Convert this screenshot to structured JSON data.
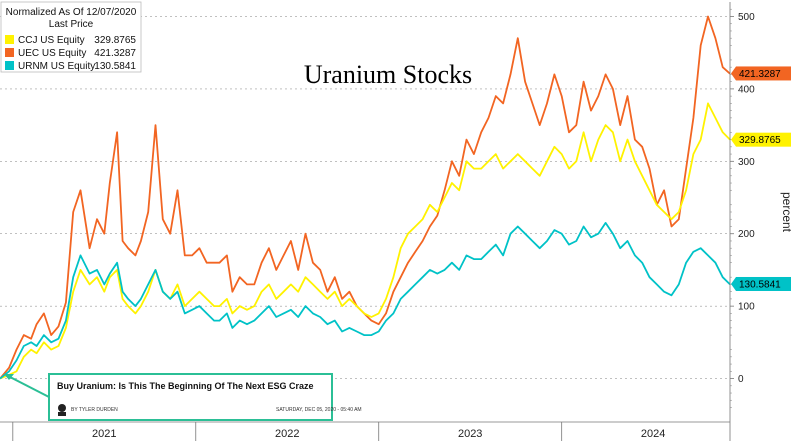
{
  "chart_data": {
    "type": "line",
    "title": "Uranium Stocks",
    "ylabel": "percent",
    "legend_header": [
      "Normalized As Of 12/07/2020",
      "Last Price"
    ],
    "legend_position": "top-left",
    "ylim": [
      -60,
      520
    ],
    "yticks": [
      0,
      100,
      200,
      300,
      400,
      500
    ],
    "xlim": [
      2020.93,
      2024.92
    ],
    "x_labels": [
      {
        "label": "2021",
        "x": 2021.5
      },
      {
        "label": "2022",
        "x": 2022.5
      },
      {
        "label": "2023",
        "x": 2023.5
      },
      {
        "label": "2024",
        "x": 2024.5
      }
    ],
    "x_dividers": [
      2021.0,
      2022.0,
      2023.0,
      2024.0,
      2024.92
    ],
    "grid": true,
    "series": [
      {
        "name": "UEC US Equity",
        "last_price": "421.3287",
        "color": "#f26522",
        "x": [
          2020.93,
          2020.98,
          2021.02,
          2021.06,
          2021.1,
          2021.13,
          2021.17,
          2021.21,
          2021.25,
          2021.29,
          2021.33,
          2021.37,
          2021.42,
          2021.46,
          2021.5,
          2021.53,
          2021.57,
          2021.6,
          2021.63,
          2021.67,
          2021.7,
          2021.74,
          2021.78,
          2021.82,
          2021.86,
          2021.9,
          2021.94,
          2021.98,
          2022.02,
          2022.06,
          2022.1,
          2022.13,
          2022.17,
          2022.2,
          2022.24,
          2022.28,
          2022.32,
          2022.36,
          2022.4,
          2022.44,
          2022.48,
          2022.52,
          2022.56,
          2022.6,
          2022.64,
          2022.68,
          2022.72,
          2022.76,
          2022.8,
          2022.84,
          2022.88,
          2022.92,
          2022.96,
          2023.0,
          2023.04,
          2023.08,
          2023.12,
          2023.16,
          2023.2,
          2023.24,
          2023.28,
          2023.32,
          2023.36,
          2023.4,
          2023.44,
          2023.48,
          2023.52,
          2023.56,
          2023.6,
          2023.64,
          2023.68,
          2023.72,
          2023.76,
          2023.8,
          2023.84,
          2023.88,
          2023.92,
          2023.96,
          2024.0,
          2024.04,
          2024.08,
          2024.12,
          2024.16,
          2024.2,
          2024.24,
          2024.28,
          2024.32,
          2024.36,
          2024.4,
          2024.44,
          2024.48,
          2024.52,
          2024.56,
          2024.6,
          2024.64,
          2024.68,
          2024.72,
          2024.76,
          2024.8,
          2024.84,
          2024.88,
          2024.92
        ],
        "values": [
          0,
          15,
          40,
          60,
          55,
          75,
          90,
          60,
          72,
          105,
          230,
          260,
          180,
          220,
          200,
          270,
          340,
          190,
          180,
          170,
          190,
          230,
          350,
          220,
          200,
          260,
          170,
          170,
          180,
          160,
          160,
          160,
          170,
          120,
          140,
          130,
          130,
          160,
          180,
          150,
          170,
          190,
          150,
          200,
          160,
          150,
          120,
          140,
          110,
          120,
          100,
          90,
          80,
          75,
          90,
          120,
          140,
          160,
          175,
          190,
          210,
          225,
          260,
          300,
          280,
          330,
          310,
          340,
          360,
          390,
          380,
          420,
          470,
          410,
          380,
          350,
          380,
          420,
          390,
          340,
          350,
          410,
          370,
          390,
          420,
          400,
          350,
          390,
          330,
          320,
          290,
          240,
          260,
          210,
          220,
          290,
          360,
          460,
          500,
          470,
          430,
          421
        ]
      },
      {
        "name": "CCJ US Equity",
        "last_price": "329.8765",
        "color": "#fff200",
        "x": [
          2020.93,
          2020.98,
          2021.02,
          2021.06,
          2021.1,
          2021.13,
          2021.17,
          2021.21,
          2021.25,
          2021.29,
          2021.33,
          2021.37,
          2021.42,
          2021.46,
          2021.5,
          2021.53,
          2021.57,
          2021.6,
          2021.63,
          2021.67,
          2021.7,
          2021.74,
          2021.78,
          2021.82,
          2021.86,
          2021.9,
          2021.94,
          2021.98,
          2022.02,
          2022.06,
          2022.1,
          2022.13,
          2022.17,
          2022.2,
          2022.24,
          2022.28,
          2022.32,
          2022.36,
          2022.4,
          2022.44,
          2022.48,
          2022.52,
          2022.56,
          2022.6,
          2022.64,
          2022.68,
          2022.72,
          2022.76,
          2022.8,
          2022.84,
          2022.88,
          2022.92,
          2022.96,
          2023.0,
          2023.04,
          2023.08,
          2023.12,
          2023.16,
          2023.2,
          2023.24,
          2023.28,
          2023.32,
          2023.36,
          2023.4,
          2023.44,
          2023.48,
          2023.52,
          2023.56,
          2023.6,
          2023.64,
          2023.68,
          2023.72,
          2023.76,
          2023.8,
          2023.84,
          2023.88,
          2023.92,
          2023.96,
          2024.0,
          2024.04,
          2024.08,
          2024.12,
          2024.16,
          2024.2,
          2024.24,
          2024.28,
          2024.32,
          2024.36,
          2024.4,
          2024.44,
          2024.48,
          2024.52,
          2024.56,
          2024.6,
          2024.64,
          2024.68,
          2024.72,
          2024.76,
          2024.8,
          2024.84,
          2024.88,
          2024.92
        ],
        "values": [
          0,
          5,
          10,
          30,
          40,
          35,
          50,
          40,
          45,
          70,
          120,
          150,
          130,
          140,
          120,
          140,
          150,
          110,
          100,
          90,
          100,
          120,
          150,
          120,
          110,
          130,
          100,
          110,
          120,
          110,
          100,
          100,
          110,
          90,
          100,
          95,
          100,
          120,
          130,
          110,
          120,
          130,
          120,
          140,
          130,
          120,
          110,
          120,
          100,
          110,
          100,
          90,
          85,
          90,
          110,
          140,
          180,
          200,
          210,
          220,
          240,
          230,
          250,
          270,
          260,
          300,
          290,
          290,
          300,
          310,
          290,
          300,
          310,
          300,
          290,
          280,
          300,
          320,
          310,
          290,
          300,
          340,
          300,
          330,
          350,
          340,
          300,
          330,
          300,
          280,
          260,
          240,
          230,
          220,
          230,
          260,
          310,
          330,
          380,
          360,
          340,
          330
        ]
      },
      {
        "name": "URNM US Equity",
        "last_price": "130.5841",
        "color": "#00c2c7",
        "x": [
          2020.93,
          2020.98,
          2021.02,
          2021.06,
          2021.1,
          2021.13,
          2021.17,
          2021.21,
          2021.25,
          2021.29,
          2021.33,
          2021.37,
          2021.42,
          2021.46,
          2021.5,
          2021.53,
          2021.57,
          2021.6,
          2021.63,
          2021.67,
          2021.7,
          2021.74,
          2021.78,
          2021.82,
          2021.86,
          2021.9,
          2021.94,
          2021.98,
          2022.02,
          2022.06,
          2022.1,
          2022.13,
          2022.17,
          2022.2,
          2022.24,
          2022.28,
          2022.32,
          2022.36,
          2022.4,
          2022.44,
          2022.48,
          2022.52,
          2022.56,
          2022.6,
          2022.64,
          2022.68,
          2022.72,
          2022.76,
          2022.8,
          2022.84,
          2022.88,
          2022.92,
          2022.96,
          2023.0,
          2023.04,
          2023.08,
          2023.12,
          2023.16,
          2023.2,
          2023.24,
          2023.28,
          2023.32,
          2023.36,
          2023.4,
          2023.44,
          2023.48,
          2023.52,
          2023.56,
          2023.6,
          2023.64,
          2023.68,
          2023.72,
          2023.76,
          2023.8,
          2023.84,
          2023.88,
          2023.92,
          2023.96,
          2024.0,
          2024.04,
          2024.08,
          2024.12,
          2024.16,
          2024.2,
          2024.24,
          2024.28,
          2024.32,
          2024.36,
          2024.4,
          2024.44,
          2024.48,
          2024.52,
          2024.56,
          2024.6,
          2024.64,
          2024.68,
          2024.72,
          2024.76,
          2024.8,
          2024.84,
          2024.88,
          2024.92
        ],
        "values": [
          0,
          10,
          25,
          45,
          50,
          45,
          60,
          50,
          55,
          80,
          140,
          170,
          145,
          150,
          130,
          145,
          160,
          120,
          110,
          100,
          110,
          130,
          150,
          120,
          110,
          120,
          90,
          95,
          100,
          90,
          80,
          80,
          90,
          70,
          80,
          75,
          80,
          90,
          100,
          85,
          90,
          95,
          85,
          100,
          90,
          85,
          75,
          80,
          65,
          70,
          65,
          60,
          60,
          65,
          80,
          90,
          110,
          120,
          130,
          140,
          150,
          145,
          150,
          160,
          150,
          170,
          165,
          165,
          175,
          185,
          170,
          200,
          210,
          200,
          190,
          180,
          190,
          205,
          200,
          185,
          190,
          210,
          195,
          200,
          215,
          200,
          180,
          190,
          170,
          160,
          140,
          130,
          120,
          115,
          130,
          160,
          175,
          180,
          170,
          160,
          140,
          130
        ]
      }
    ]
  },
  "article_tag": {
    "headline": "Buy Uranium: Is This The Beginning Of The Next ESG Craze",
    "byline": "BY TYLER DURDEN",
    "dateline": "SATURDAY, DEC 05, 2020 - 05:40 AM"
  }
}
